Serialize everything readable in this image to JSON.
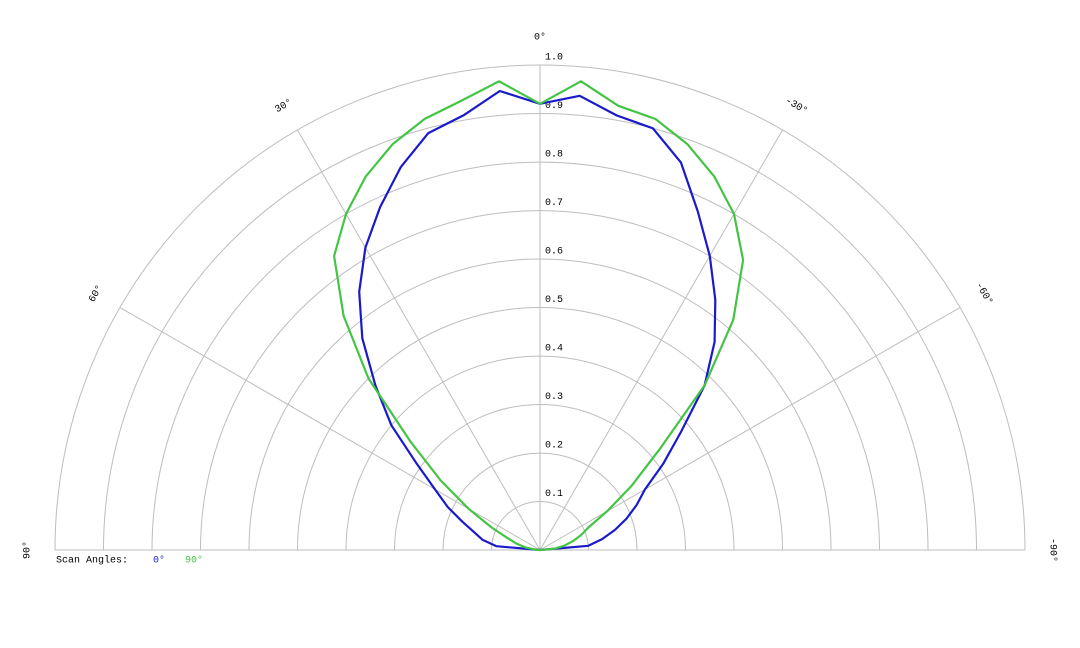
{
  "chart_data": {
    "type": "polar",
    "theta": [
      -90,
      -85,
      -80,
      -75,
      -70,
      -65,
      -60,
      -55,
      -50,
      -45,
      -40,
      -35,
      -30,
      -25,
      -20,
      -15,
      -10,
      -5,
      0,
      5,
      10,
      15,
      20,
      25,
      30,
      35,
      40,
      45,
      50,
      55,
      60,
      65,
      70,
      75,
      80,
      85,
      90
    ],
    "thetalim": [
      -90,
      90
    ],
    "thetaticks": [
      {
        "value": 90,
        "label": "90°"
      },
      {
        "value": 60,
        "label": "60°"
      },
      {
        "value": 30,
        "label": "30°"
      },
      {
        "value": 0,
        "label": "0°"
      },
      {
        "value": -30,
        "label": "-30°"
      },
      {
        "value": -60,
        "label": "-60°"
      },
      {
        "value": -90,
        "label": "-90°"
      }
    ],
    "rlim": [
      0,
      1
    ],
    "rticks": [
      0.1,
      0.2,
      0.3,
      0.4,
      0.5,
      0.6,
      0.7,
      0.8,
      0.9,
      {
        "value": 1,
        "label": "1.0"
      }
    ],
    "grid": true,
    "legend_title": "Scan Angles:",
    "series": [
      {
        "name": "0°",
        "color": "#1a1acc",
        "values": [
          0,
          0.1,
          0.13,
          0.16,
          0.19,
          0.22,
          0.25,
          0.31,
          0.38,
          0.48,
          0.56,
          0.63,
          0.7,
          0.77,
          0.85,
          0.9,
          0.91,
          0.94,
          0.92,
          0.95,
          0.91,
          0.89,
          0.84,
          0.78,
          0.72,
          0.65,
          0.57,
          0.48,
          0.4,
          0.31,
          0.25,
          0.21,
          0.17,
          0.14,
          0.12,
          0.09,
          0
        ]
      },
      {
        "name": "90°",
        "color": "#44c444",
        "values": [
          0,
          0.03,
          0.05,
          0.07,
          0.09,
          0.11,
          0.16,
          0.23,
          0.32,
          0.48,
          0.62,
          0.73,
          0.8,
          0.85,
          0.89,
          0.92,
          0.93,
          0.97,
          0.92,
          0.97,
          0.94,
          0.92,
          0.89,
          0.85,
          0.8,
          0.74,
          0.63,
          0.5,
          0.35,
          0.25,
          0.17,
          0.11,
          0.07,
          0.05,
          0.03,
          0.01,
          0
        ]
      }
    ]
  }
}
